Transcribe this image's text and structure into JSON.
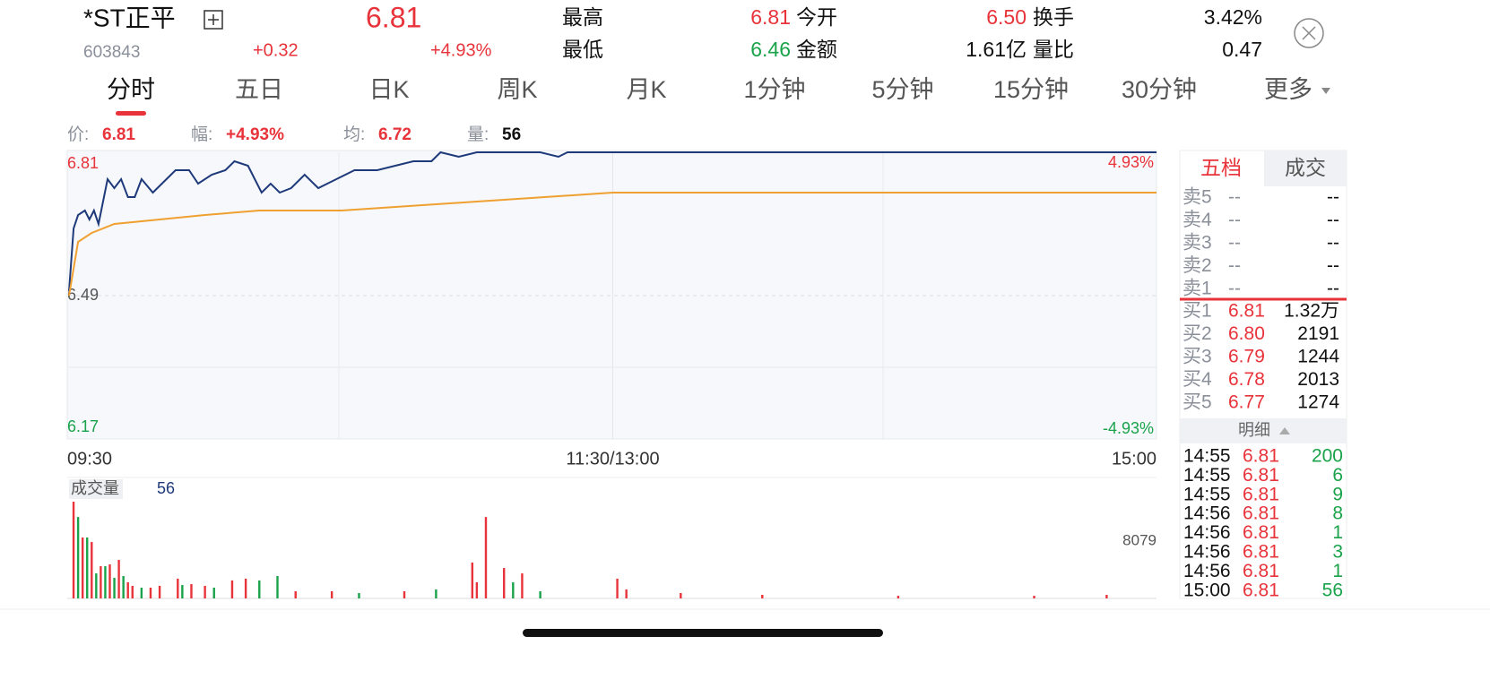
{
  "header": {
    "name": "*ST正平",
    "code": "603843",
    "price": "6.81",
    "change": "+0.32",
    "change_pct": "+4.93%",
    "stats": [
      {
        "label": "最高",
        "value": "6.81"
      },
      {
        "label": "最低",
        "value": "6.46"
      },
      {
        "label": "今开",
        "value": "6.50"
      },
      {
        "label": "金额",
        "value": "1.61亿"
      },
      {
        "label": "换手",
        "value": "3.42%"
      },
      {
        "label": "量比",
        "value": "0.47"
      }
    ]
  },
  "tabs": [
    "分时",
    "五日",
    "日K",
    "周K",
    "月K",
    "1分钟",
    "5分钟",
    "15分钟",
    "30分钟",
    "更多"
  ],
  "info_bar": [
    {
      "label": "价:",
      "value": "6.81"
    },
    {
      "label": "幅:",
      "value": "+4.93%"
    },
    {
      "label": "均:",
      "value": "6.72"
    },
    {
      "label": "量:",
      "value": "56"
    }
  ],
  "chart_data": [
    {
      "type": "line",
      "xlim": [
        0,
        240
      ],
      "xticks": [
        {
          "value": 0,
          "label": "09:30"
        },
        {
          "value": 120,
          "label": "11:30/13:00"
        },
        {
          "value": 240,
          "label": "15:00"
        }
      ],
      "ylim": [
        6.17,
        6.81
      ],
      "yticks": [
        6.17,
        6.49,
        6.81
      ],
      "y2lim": [
        -4.93,
        4.93
      ],
      "y2ticks": [
        {
          "value": -4.93,
          "label": "-4.93%"
        },
        {
          "value": 4.93,
          "label": "4.93%"
        }
      ],
      "grid": true,
      "series": [
        {
          "color": "#1f3a7a",
          "x": [
            0,
            1,
            2,
            3.5,
            4.5,
            5.5,
            6.5,
            8.5,
            10,
            11.5,
            13,
            14.5,
            16,
            18.5,
            20.5,
            23.5,
            26.5,
            28.5,
            31.5,
            34.5,
            36.5,
            39.5,
            41,
            42.5,
            44.5,
            46.5,
            49,
            52,
            55,
            59,
            63,
            68,
            72,
            76,
            80,
            82,
            86,
            90,
            104,
            108,
            110,
            240
          ],
          "values": [
            6.5,
            6.64,
            6.67,
            6.68,
            6.66,
            6.68,
            6.65,
            6.75,
            6.73,
            6.75,
            6.71,
            6.71,
            6.75,
            6.72,
            6.74,
            6.77,
            6.77,
            6.74,
            6.76,
            6.77,
            6.79,
            6.78,
            6.75,
            6.72,
            6.74,
            6.72,
            6.73,
            6.76,
            6.73,
            6.75,
            6.77,
            6.77,
            6.78,
            6.79,
            6.79,
            6.81,
            6.8,
            6.81,
            6.81,
            6.8,
            6.81,
            6.81
          ]
        },
        {
          "color": "#f0a030",
          "x": [
            0,
            2,
            5,
            10,
            20,
            30,
            42,
            60,
            75,
            90,
            105,
            120,
            240
          ],
          "values": [
            6.49,
            6.61,
            6.63,
            6.65,
            6.66,
            6.67,
            6.68,
            6.68,
            6.69,
            6.7,
            6.71,
            6.72,
            6.72
          ]
        }
      ]
    },
    {
      "type": "bar",
      "title": "成交量",
      "latest": 56,
      "xlim": [
        0,
        240
      ],
      "ylim": [
        0,
        8079
      ],
      "yticks": [
        8079
      ],
      "series": [
        {
          "color": "#e8333a",
          "x": [
            1,
            3,
            5,
            7,
            9,
            11,
            13,
            14,
            18,
            20,
            24,
            27,
            30,
            36,
            39,
            50,
            58,
            74,
            89,
            90,
            92,
            96,
            100,
            121,
            123,
            135,
            153,
            183,
            213,
            229
          ],
          "values": [
            8079,
            5090,
            4710,
            2690,
            2840,
            3220,
            1350,
            1050,
            900,
            1050,
            1650,
            1200,
            1050,
            1500,
            1650,
            600,
            600,
            600,
            3000,
            1350,
            6800,
            2540,
            2090,
            1650,
            750,
            450,
            300,
            220,
            220,
            300
          ]
        },
        {
          "color": "#1aa34a",
          "x": [
            2,
            4,
            6,
            8,
            10,
            12,
            16,
            25,
            32,
            42,
            46,
            64,
            81,
            98,
            104
          ],
          "values": [
            6800,
            5090,
            2090,
            2690,
            1720,
            1870,
            900,
            1120,
            900,
            1500,
            1870,
            450,
            750,
            1350,
            600
          ]
        }
      ]
    }
  ],
  "order_book": {
    "tabs": [
      "五档",
      "成交"
    ],
    "asks": [
      {
        "label": "卖5",
        "price": "--",
        "volume": "--"
      },
      {
        "label": "卖4",
        "price": "--",
        "volume": "--"
      },
      {
        "label": "卖3",
        "price": "--",
        "volume": "--"
      },
      {
        "label": "卖2",
        "price": "--",
        "volume": "--"
      },
      {
        "label": "卖1",
        "price": "--",
        "volume": "--"
      }
    ],
    "bids": [
      {
        "label": "买1",
        "price": "6.81",
        "volume": "1.32万"
      },
      {
        "label": "买2",
        "price": "6.80",
        "volume": "2191"
      },
      {
        "label": "买3",
        "price": "6.79",
        "volume": "1244"
      },
      {
        "label": "买4",
        "price": "6.78",
        "volume": "2013"
      },
      {
        "label": "买5",
        "price": "6.77",
        "volume": "1274"
      }
    ],
    "detail_label": "明细"
  },
  "trades": [
    {
      "time": "14:55",
      "price": "6.81",
      "volume": "200"
    },
    {
      "time": "14:55",
      "price": "6.81",
      "volume": "6"
    },
    {
      "time": "14:55",
      "price": "6.81",
      "volume": "9"
    },
    {
      "time": "14:56",
      "price": "6.81",
      "volume": "8"
    },
    {
      "time": "14:56",
      "price": "6.81",
      "volume": "1"
    },
    {
      "time": "14:56",
      "price": "6.81",
      "volume": "3"
    },
    {
      "time": "14:56",
      "price": "6.81",
      "volume": "1"
    },
    {
      "time": "15:00",
      "price": "6.81",
      "volume": "56"
    }
  ]
}
